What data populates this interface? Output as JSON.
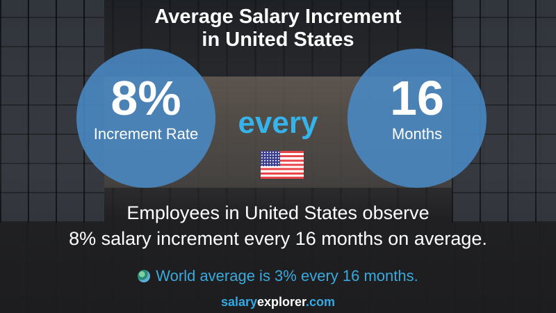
{
  "title_line1": "Average Salary Increment",
  "title_line2": "in United States",
  "rate": {
    "value": "8%",
    "label": "Increment Rate"
  },
  "connector": "every",
  "period": {
    "value": "16",
    "label": "Months"
  },
  "country_flag_icon": "us-flag-icon",
  "description_line1": "Employees in United States observe",
  "description_line2": "8% salary increment every 16 months on average.",
  "world_note": "World average is 3% every 16 months.",
  "brand": {
    "part1": "salary",
    "part2": "explorer",
    "part3": ".com"
  },
  "colors": {
    "circle": "#4a8ac5",
    "accent": "#35b3ea",
    "world_text": "#3aa9dc"
  }
}
